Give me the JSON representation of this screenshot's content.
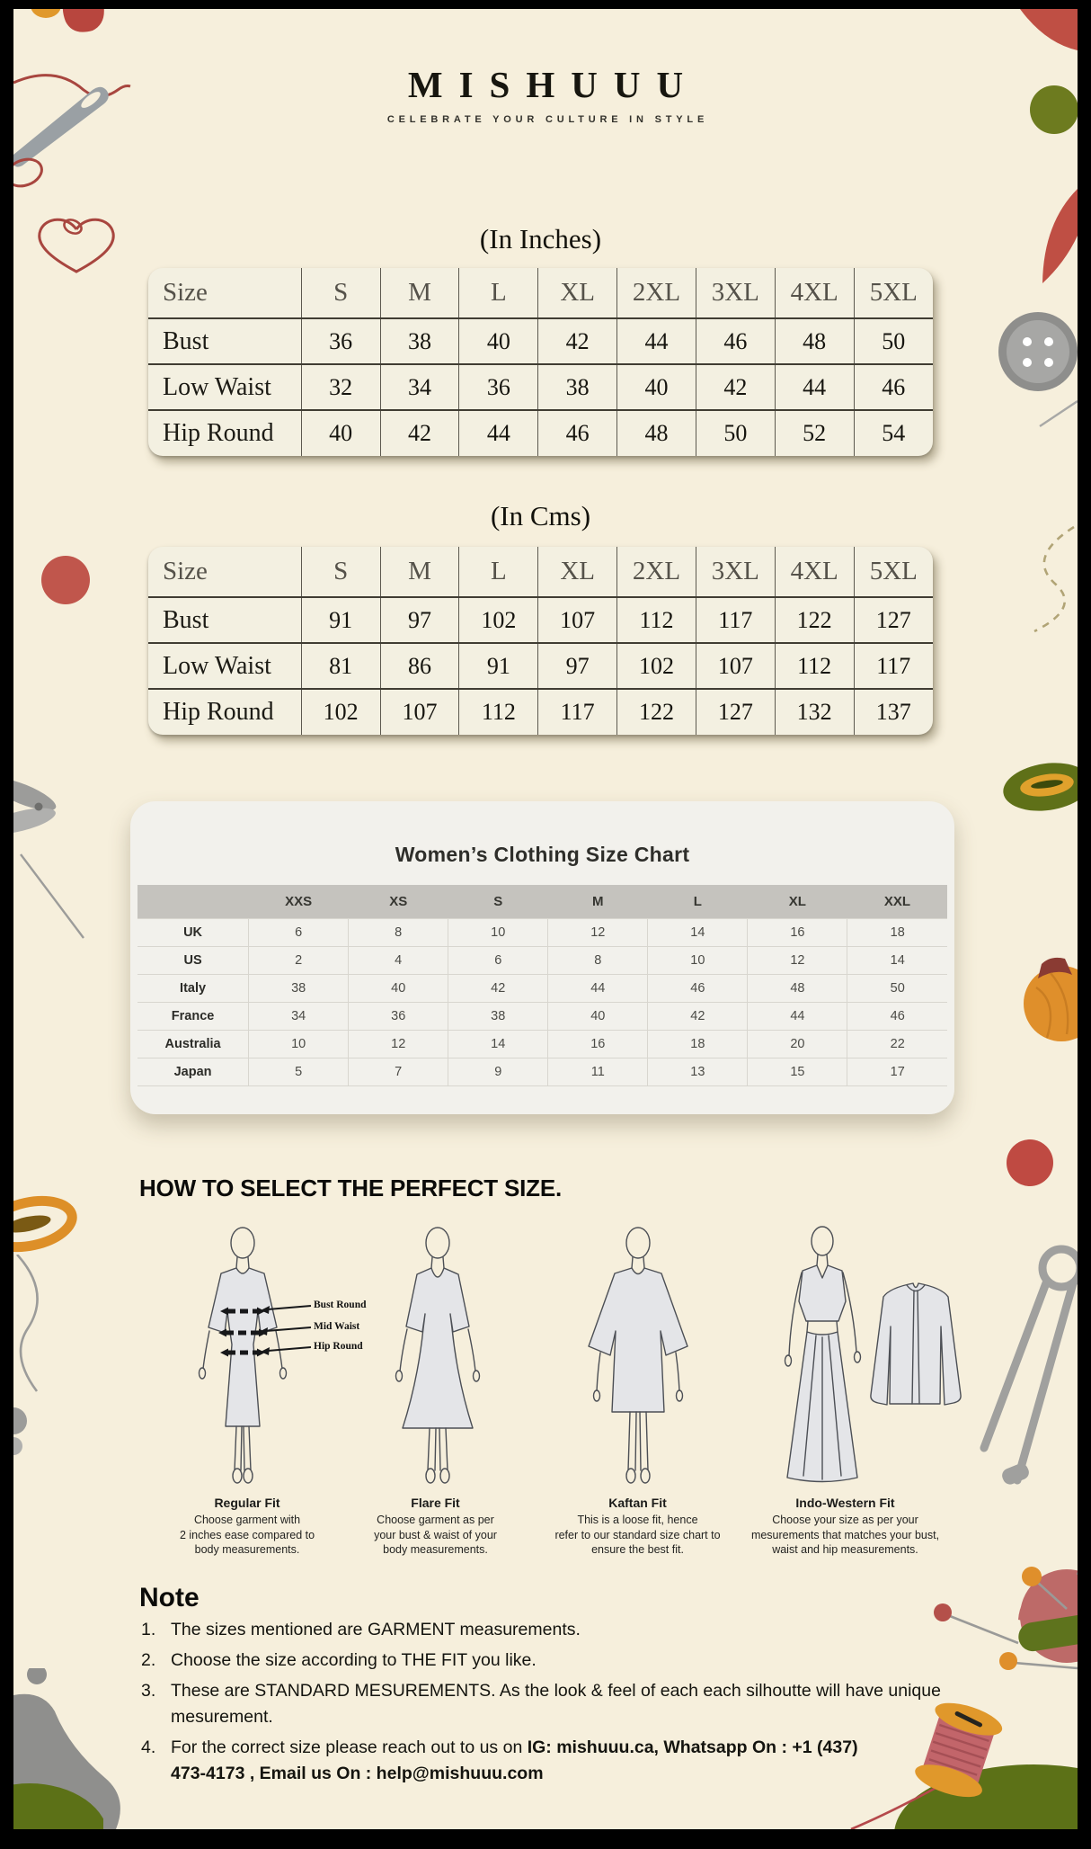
{
  "brand": {
    "name": "MISHUUU",
    "tagline": "CELEBRATE YOUR CULTURE IN STYLE"
  },
  "inches_table": {
    "title": "(In Inches)",
    "header": [
      "Size",
      "S",
      "M",
      "L",
      "XL",
      "2XL",
      "3XL",
      "4XL",
      "5XL"
    ],
    "rows": [
      [
        "Bust",
        "36",
        "38",
        "40",
        "42",
        "44",
        "46",
        "48",
        "50"
      ],
      [
        "Low Waist",
        "32",
        "34",
        "36",
        "38",
        "40",
        "42",
        "44",
        "46"
      ],
      [
        "Hip Round",
        "40",
        "42",
        "44",
        "46",
        "48",
        "50",
        "52",
        "54"
      ]
    ]
  },
  "cms_table": {
    "title": "(In Cms)",
    "header": [
      "Size",
      "S",
      "M",
      "L",
      "XL",
      "2XL",
      "3XL",
      "4XL",
      "5XL"
    ],
    "rows": [
      [
        "Bust",
        "91",
        "97",
        "102",
        "107",
        "112",
        "117",
        "122",
        "127"
      ],
      [
        "Low Waist",
        "81",
        "86",
        "91",
        "97",
        "102",
        "107",
        "112",
        "117"
      ],
      [
        "Hip Round",
        "102",
        "107",
        "112",
        "117",
        "122",
        "127",
        "132",
        "137"
      ]
    ]
  },
  "women_chart": {
    "title": "Women’s Clothing Size Chart",
    "header": [
      "",
      "XXS",
      "XS",
      "S",
      "M",
      "L",
      "XL",
      "XXL"
    ],
    "rows": [
      [
        "UK",
        "6",
        "8",
        "10",
        "12",
        "14",
        "16",
        "18"
      ],
      [
        "US",
        "2",
        "4",
        "6",
        "8",
        "10",
        "12",
        "14"
      ],
      [
        "Italy",
        "38",
        "40",
        "42",
        "44",
        "46",
        "48",
        "50"
      ],
      [
        "France",
        "34",
        "36",
        "38",
        "40",
        "42",
        "44",
        "46"
      ],
      [
        "Australia",
        "10",
        "12",
        "14",
        "16",
        "18",
        "20",
        "22"
      ],
      [
        "Japan",
        "5",
        "7",
        "9",
        "11",
        "13",
        "15",
        "17"
      ]
    ]
  },
  "fit_guide": {
    "heading": "HOW TO SELECT THE PERFECT SIZE.",
    "measure_labels": [
      "Bust Round",
      "Mid Waist",
      "Hip Round"
    ],
    "fits": [
      {
        "name": "Regular Fit",
        "desc": "Choose garment with\n2 inches ease compared to\nbody measurements."
      },
      {
        "name": "Flare Fit",
        "desc": "Choose garment as per\nyour bust & waist of your\nbody measurements."
      },
      {
        "name": "Kaftan Fit",
        "desc": "This is a loose fit, hence\nrefer to our standard size chart to\nensure the best fit."
      },
      {
        "name": "Indo-Western Fit",
        "desc": "Choose your size as per your\nmesurements that matches your bust,\nwaist and hip measurements."
      }
    ]
  },
  "note": {
    "heading": "Note",
    "items": [
      {
        "text": "The sizes mentioned are GARMENT measurements.",
        "bold": ""
      },
      {
        "text": "Choose the size according to THE FIT you like.",
        "bold": ""
      },
      {
        "text": "These are STANDARD MESUREMENTS. As the look & feel of each each silhoutte will have unique\nmesurement.",
        "bold": ""
      },
      {
        "text": "For the correct size please reach out to us on ",
        "bold": "IG: mishuuu.ca, Whatsapp On : +1 (437)\n473-4173 , Email us On : help@mishuuu.com"
      }
    ]
  },
  "palette": {
    "page_bg": "#f6efdc",
    "frame": "#000000",
    "table_bg": "#f3f0e1",
    "card_bg": "#f2f1ec",
    "chart_header_bg": "#c5c3be",
    "accent_red": "#bf4f44",
    "accent_olive": "#5f7018",
    "accent_orange": "#e0982b",
    "metal_gray": "#9c9c9a",
    "figure_fill": "#e4e5e8"
  },
  "decorations": [
    "needle-and-thread-icon",
    "thread-heart-icon",
    "button-icon",
    "embroidery-hoop-icon",
    "thread-spool-icon",
    "pin-cushion-icon",
    "safety-pin-icon",
    "scissors-icon",
    "mannequin-icon",
    "pins-icon",
    "stitch-dashes-icon"
  ]
}
